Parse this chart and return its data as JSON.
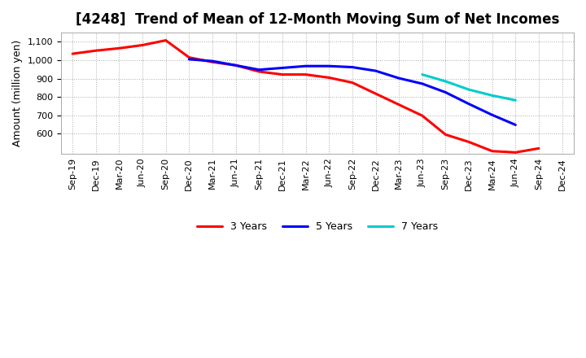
{
  "title": "[4248]  Trend of Mean of 12-Month Moving Sum of Net Incomes",
  "ylabel": "Amount (million yen)",
  "background_color": "#ffffff",
  "grid_color": "#aaaaaa",
  "tick_labels": [
    "Sep-19",
    "Dec-19",
    "Mar-20",
    "Jun-20",
    "Sep-20",
    "Dec-20",
    "Mar-21",
    "Jun-21",
    "Sep-21",
    "Dec-21",
    "Mar-22",
    "Jun-22",
    "Sep-22",
    "Dec-22",
    "Mar-23",
    "Jun-23",
    "Sep-23",
    "Dec-23",
    "Mar-24",
    "Jun-24",
    "Sep-24",
    "Dec-24"
  ],
  "series_3y": [
    1035,
    1052,
    1065,
    1082,
    1108,
    1015,
    990,
    972,
    938,
    922,
    922,
    905,
    878,
    818,
    758,
    698,
    595,
    555,
    505,
    498,
    520,
    null
  ],
  "series_5y": [
    null,
    null,
    null,
    null,
    null,
    1005,
    995,
    972,
    948,
    958,
    968,
    968,
    962,
    942,
    902,
    872,
    825,
    762,
    702,
    648,
    null,
    null
  ],
  "series_7y": [
    null,
    null,
    null,
    null,
    null,
    null,
    null,
    null,
    null,
    null,
    null,
    null,
    null,
    null,
    null,
    922,
    885,
    840,
    808,
    782,
    null,
    null
  ],
  "series_10y": [
    null,
    null,
    null,
    null,
    null,
    null,
    null,
    null,
    null,
    null,
    null,
    null,
    null,
    null,
    null,
    null,
    null,
    null,
    null,
    null,
    null,
    null
  ],
  "color_3y": "#ff0000",
  "color_5y": "#0000ff",
  "color_7y": "#00cccc",
  "color_10y": "#008800",
  "ylim_min": 490,
  "ylim_max": 1150,
  "yticks": [
    600,
    700,
    800,
    900,
    1000,
    1100
  ],
  "linewidth": 2.2,
  "title_fontsize": 12,
  "ylabel_fontsize": 9,
  "tick_fontsize": 8
}
